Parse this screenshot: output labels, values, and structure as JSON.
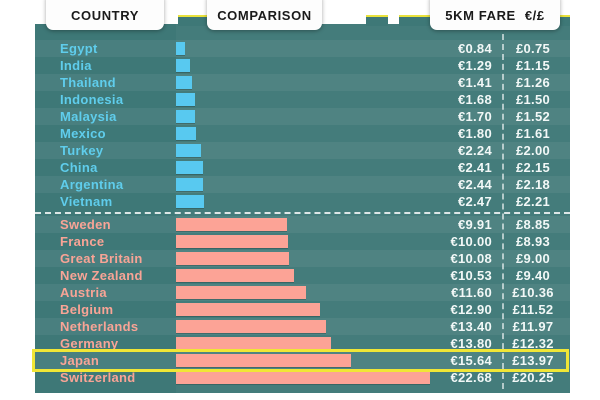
{
  "header": {
    "country_label": "COUNTRY",
    "comparison_label": "COMPARISON",
    "fare_label": "5KM FARE",
    "currency_label": "€/£"
  },
  "colors": {
    "panel_teal": "#3e7877",
    "blue_bar": "#58c9f0",
    "pink_bar": "#fca396",
    "blue_label": "#5fcdec",
    "pink_label": "#f9a496",
    "value_text": "#f2f8f7",
    "highlight_yellow": "#f0e636",
    "tab_yellow": "#e9e23c",
    "header_text": "#1b1b1b"
  },
  "chart_data": {
    "type": "bar",
    "orientation": "horizontal",
    "title": "5km taxi fare comparison by country",
    "columns": [
      "COUNTRY",
      "COMPARISON",
      "5KM FARE",
      "€/£"
    ],
    "value_axis": "fare in EUR (bar length proportional, ~11.2px per €)",
    "highlighted_country": "Japan",
    "groups": [
      {
        "name": "cheapest",
        "bar_color": "#58c9f0",
        "label_color": "#5fcdec",
        "rows": [
          {
            "country": "Egypt",
            "eur": "€0.84",
            "gbp": "£0.75",
            "eur_value": 0.84
          },
          {
            "country": "India",
            "eur": "€1.29",
            "gbp": "£1.15",
            "eur_value": 1.29
          },
          {
            "country": "Thailand",
            "eur": "€1.41",
            "gbp": "£1.26",
            "eur_value": 1.41
          },
          {
            "country": "Indonesia",
            "eur": "€1.68",
            "gbp": "£1.50",
            "eur_value": 1.68
          },
          {
            "country": "Malaysia",
            "eur": "€1.70",
            "gbp": "£1.52",
            "eur_value": 1.7
          },
          {
            "country": "Mexico",
            "eur": "€1.80",
            "gbp": "£1.61",
            "eur_value": 1.8
          },
          {
            "country": "Turkey",
            "eur": "€2.24",
            "gbp": "£2.00",
            "eur_value": 2.24
          },
          {
            "country": "China",
            "eur": "€2.41",
            "gbp": "£2.15",
            "eur_value": 2.41
          },
          {
            "country": "Argentina",
            "eur": "€2.44",
            "gbp": "£2.18",
            "eur_value": 2.44
          },
          {
            "country": "Vietnam",
            "eur": "€2.47",
            "gbp": "£2.21",
            "eur_value": 2.47
          }
        ]
      },
      {
        "name": "most_expensive",
        "bar_color": "#fca396",
        "label_color": "#f9a496",
        "rows": [
          {
            "country": "Sweden",
            "eur": "€9.91",
            "gbp": "£8.85",
            "eur_value": 9.91
          },
          {
            "country": "France",
            "eur": "€10.00",
            "gbp": "£8.93",
            "eur_value": 10.0
          },
          {
            "country": "Great Britain",
            "eur": "€10.08",
            "gbp": "£9.00",
            "eur_value": 10.08
          },
          {
            "country": "New Zealand",
            "eur": "€10.53",
            "gbp": "£9.40",
            "eur_value": 10.53
          },
          {
            "country": "Austria",
            "eur": "€11.60",
            "gbp": "£10.36",
            "eur_value": 11.6
          },
          {
            "country": "Belgium",
            "eur": "€12.90",
            "gbp": "£11.52",
            "eur_value": 12.9
          },
          {
            "country": "Netherlands",
            "eur": "€13.40",
            "gbp": "£11.97",
            "eur_value": 13.4
          },
          {
            "country": "Germany",
            "eur": "€13.80",
            "gbp": "£12.32",
            "eur_value": 13.8
          },
          {
            "country": "Japan",
            "eur": "€15.64",
            "gbp": "£13.97",
            "eur_value": 15.64
          },
          {
            "country": "Switzerland",
            "eur": "€22.68",
            "gbp": "£20.25",
            "eur_value": 22.68
          }
        ]
      }
    ]
  }
}
